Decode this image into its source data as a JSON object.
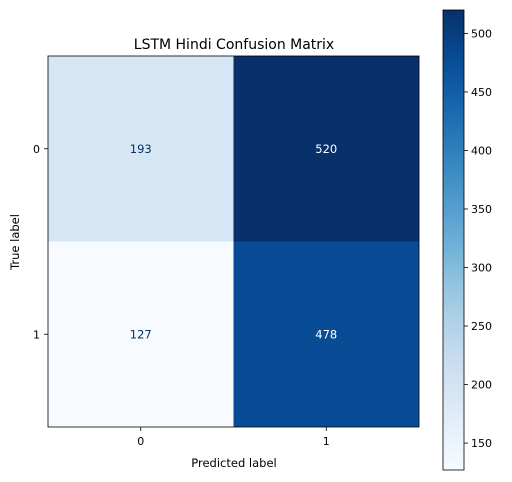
{
  "chart_data": {
    "type": "heatmap",
    "title": "LSTM Hindi Confusion Matrix",
    "xlabel": "Predicted label",
    "ylabel": "True label",
    "x_categories": [
      "0",
      "1"
    ],
    "y_categories": [
      "0",
      "1"
    ],
    "values": [
      [
        193,
        520
      ],
      [
        127,
        478
      ]
    ],
    "colormap": "Blues",
    "colorbar": {
      "range": [
        127,
        520
      ],
      "ticks": [
        "150",
        "200",
        "250",
        "300",
        "350",
        "400",
        "450",
        "500"
      ],
      "tick_values": [
        150,
        200,
        250,
        300,
        350,
        400,
        450,
        500
      ]
    }
  }
}
